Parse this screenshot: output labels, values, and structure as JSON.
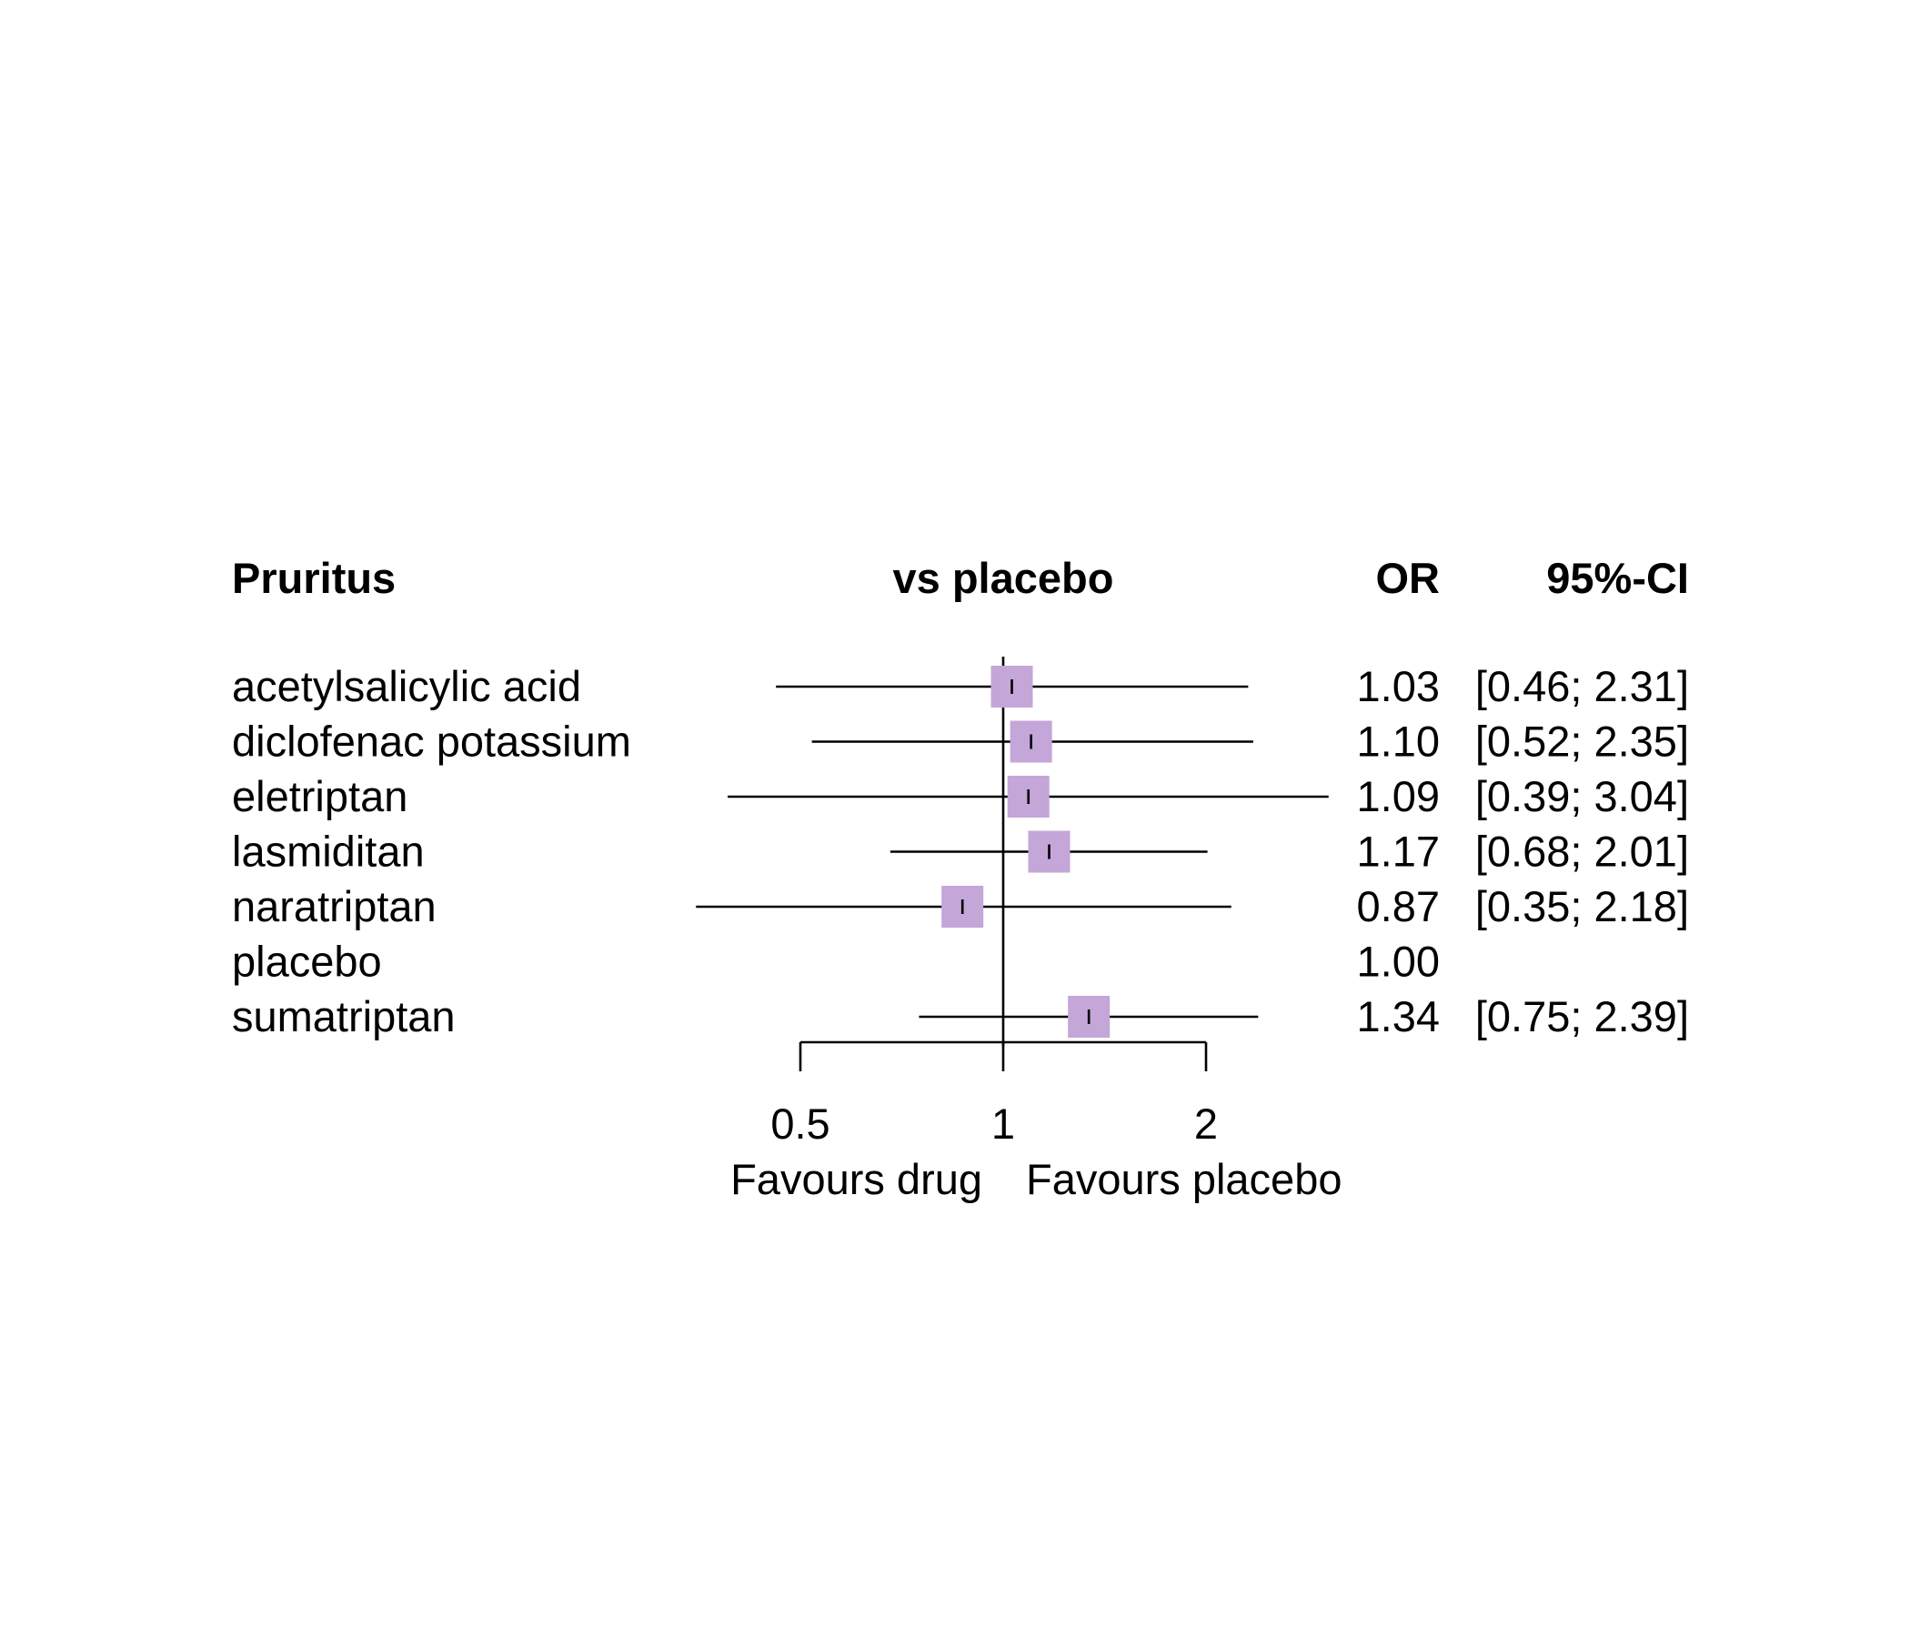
{
  "chart_data": {
    "type": "forest",
    "title": "Pruritus",
    "header_center": "vs placebo",
    "header_estimate": "OR",
    "header_ci": "95%-CI",
    "x_scale": "log",
    "x_ticks": [
      0.5,
      1,
      2
    ],
    "x_tick_labels": [
      "0.5",
      "1",
      "2"
    ],
    "reference_value": 1,
    "xlim": [
      0.5,
      2
    ],
    "favours_left": "Favours drug",
    "favours_right": "Favours placebo",
    "marker_color": "#c4a6d8",
    "rows": [
      {
        "label": "acetylsalicylic acid",
        "or": 1.03,
        "lower": 0.46,
        "upper": 2.31,
        "or_text": "1.03",
        "ci_text": "[0.46; 2.31]"
      },
      {
        "label": "diclofenac potassium",
        "or": 1.1,
        "lower": 0.52,
        "upper": 2.35,
        "or_text": "1.10",
        "ci_text": "[0.52; 2.35]"
      },
      {
        "label": "eletriptan",
        "or": 1.09,
        "lower": 0.39,
        "upper": 3.04,
        "or_text": "1.09",
        "ci_text": "[0.39; 3.04]"
      },
      {
        "label": "lasmiditan",
        "or": 1.17,
        "lower": 0.68,
        "upper": 2.01,
        "or_text": "1.17",
        "ci_text": "[0.68; 2.01]"
      },
      {
        "label": "naratriptan",
        "or": 0.87,
        "lower": 0.35,
        "upper": 2.18,
        "or_text": "0.87",
        "ci_text": "[0.35; 2.18]"
      },
      {
        "label": "placebo",
        "or": 1.0,
        "lower": null,
        "upper": null,
        "or_text": "1.00",
        "ci_text": ""
      },
      {
        "label": "sumatriptan",
        "or": 1.34,
        "lower": 0.75,
        "upper": 2.39,
        "or_text": "1.34",
        "ci_text": "[0.75; 2.39]"
      }
    ]
  }
}
